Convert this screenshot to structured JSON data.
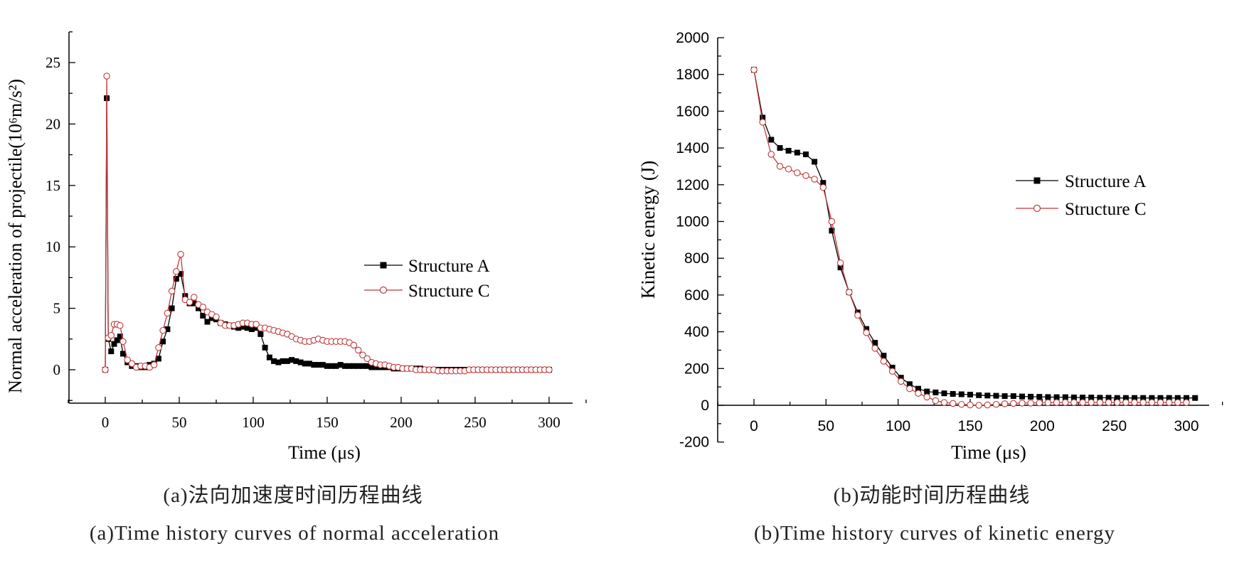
{
  "chart_data": [
    {
      "type": "line",
      "ylabel": "Normal acceleration of projectile(10⁶m/s²)",
      "xlabel": "Time (μs)",
      "xlim": [
        -25,
        325
      ],
      "ylim": [
        -2.5,
        27.5
      ],
      "xticks": [
        0,
        50,
        100,
        150,
        200,
        250,
        300
      ],
      "yticks": [
        0,
        5,
        10,
        15,
        20,
        25
      ],
      "legend": "center-right",
      "caption_cn": "(a)法向加速度时间历程曲线",
      "caption_en": "(a)Time history curves of normal acceleration",
      "series": [
        {
          "name": "Structure A",
          "color": "#000000",
          "marker": "filled-square",
          "x": [
            0,
            1,
            2,
            4,
            6,
            8,
            10,
            12,
            15,
            18,
            21,
            24,
            27,
            30,
            33,
            36,
            39,
            42,
            45,
            48,
            51,
            54,
            57,
            60,
            63,
            66,
            69,
            72,
            75,
            78,
            81,
            84,
            87,
            90,
            93,
            96,
            99,
            102,
            105,
            108,
            111,
            114,
            117,
            120,
            123,
            126,
            129,
            132,
            135,
            138,
            141,
            144,
            147,
            150,
            153,
            156,
            159,
            162,
            165,
            168,
            171,
            174,
            177,
            180,
            183,
            186,
            189,
            192,
            195,
            198,
            201,
            204,
            207,
            210,
            213,
            216,
            219,
            222,
            225,
            228,
            231,
            234,
            237,
            240,
            243,
            246,
            249,
            252,
            255,
            258,
            261,
            264,
            267,
            270,
            273,
            276,
            279,
            282,
            285,
            288,
            291,
            294,
            297,
            300
          ],
          "y": [
            0,
            22.1,
            2.5,
            1.5,
            2.1,
            2.4,
            2.7,
            1.3,
            0.6,
            0.3,
            0.3,
            0.2,
            0.2,
            0.4,
            0.5,
            0.9,
            2.3,
            3.3,
            5.0,
            7.4,
            7.8,
            6.0,
            5.4,
            5.4,
            5.0,
            4.4,
            3.9,
            4.2,
            4.1,
            3.8,
            3.7,
            3.6,
            3.5,
            3.4,
            3.5,
            3.4,
            3.3,
            3.4,
            2.9,
            1.8,
            1.0,
            0.7,
            0.6,
            0.7,
            0.7,
            0.8,
            0.7,
            0.6,
            0.5,
            0.5,
            0.4,
            0.4,
            0.4,
            0.3,
            0.3,
            0.3,
            0.4,
            0.3,
            0.3,
            0.3,
            0.3,
            0.3,
            0.3,
            0.2,
            0.2,
            0.2,
            0.2,
            0.2,
            0.1,
            0.1,
            0.1,
            0.1,
            0.1,
            0.1,
            0.1,
            0.0,
            0.0,
            0.0,
            0.0,
            0.0,
            0.0,
            0.0,
            0.0,
            0.0,
            0.0,
            0.0,
            0.0,
            0.0,
            0.0,
            0.0,
            0.0,
            0.0,
            0.0,
            0.0,
            0.0,
            0.0,
            0.0,
            0.0,
            0.0,
            0.0,
            0.0,
            0.0,
            0.0,
            0.0
          ]
        },
        {
          "name": "Structure C",
          "color": "#c0393b",
          "marker": "open-circle",
          "x": [
            0,
            1,
            2,
            4,
            6,
            8,
            10,
            12,
            15,
            18,
            21,
            24,
            27,
            30,
            33,
            36,
            39,
            42,
            45,
            48,
            51,
            54,
            57,
            60,
            63,
            66,
            69,
            72,
            75,
            78,
            81,
            84,
            87,
            90,
            93,
            96,
            99,
            102,
            105,
            108,
            111,
            114,
            117,
            120,
            123,
            126,
            129,
            132,
            135,
            138,
            141,
            144,
            147,
            150,
            153,
            156,
            159,
            162,
            165,
            168,
            171,
            174,
            177,
            180,
            183,
            186,
            189,
            192,
            195,
            198,
            201,
            204,
            207,
            210,
            213,
            216,
            219,
            222,
            225,
            228,
            231,
            234,
            237,
            240,
            243,
            246,
            249,
            252,
            255,
            258,
            261,
            264,
            267,
            270,
            273,
            276,
            279,
            282,
            285,
            288,
            291,
            294,
            297,
            300
          ],
          "y": [
            0,
            23.9,
            2.6,
            2.8,
            3.7,
            3.7,
            3.6,
            2.3,
            0.8,
            0.5,
            0.2,
            0.3,
            0.3,
            0.2,
            0.4,
            1.8,
            3.2,
            4.6,
            6.4,
            8.0,
            9.4,
            5.7,
            5.5,
            5.9,
            5.3,
            5.1,
            4.7,
            4.5,
            4.3,
            3.8,
            3.6,
            3.6,
            3.6,
            3.7,
            3.8,
            3.8,
            3.7,
            3.7,
            3.4,
            3.4,
            3.3,
            3.2,
            3.1,
            3.0,
            2.9,
            2.7,
            2.5,
            2.4,
            2.3,
            2.3,
            2.4,
            2.5,
            2.4,
            2.3,
            2.3,
            2.3,
            2.3,
            2.3,
            2.2,
            2.0,
            1.6,
            1.2,
            0.9,
            0.6,
            0.5,
            0.4,
            0.4,
            0.3,
            0.2,
            0.2,
            0.1,
            0.1,
            0.1,
            0.0,
            0.0,
            0.0,
            0.0,
            0.0,
            -0.1,
            -0.1,
            -0.1,
            -0.1,
            -0.1,
            -0.1,
            -0.1,
            0.0,
            0.0,
            0.0,
            0.0,
            0.0,
            0.0,
            0.0,
            0.0,
            0.0,
            0.0,
            0.0,
            0.0,
            0.0,
            0.0,
            0.0,
            0.0,
            0.0,
            0.0,
            0.0
          ]
        }
      ]
    },
    {
      "type": "line",
      "ylabel": "Kinetic energy (J)",
      "xlabel": "Time (μs)",
      "xlim": [
        -25,
        325
      ],
      "ylim": [
        -200,
        2000
      ],
      "xticks": [
        0,
        50,
        100,
        150,
        200,
        250,
        300
      ],
      "yticks": [
        -200,
        0,
        200,
        400,
        600,
        800,
        1000,
        1200,
        1400,
        1600,
        1800,
        2000
      ],
      "legend": "top-right",
      "caption_cn": "(b)动能时间历程曲线",
      "caption_en": "(b)Time history curves of kinetic energy",
      "series": [
        {
          "name": "Structure A",
          "color": "#000000",
          "marker": "filled-square",
          "x": [
            0,
            6,
            12,
            18,
            24,
            30,
            36,
            42,
            48,
            54,
            60,
            66,
            72,
            78,
            84,
            90,
            96,
            102,
            108,
            114,
            120,
            126,
            132,
            138,
            144,
            150,
            156,
            162,
            168,
            174,
            180,
            186,
            192,
            198,
            204,
            210,
            216,
            222,
            228,
            234,
            240,
            246,
            252,
            258,
            264,
            270,
            276,
            282,
            288,
            294,
            300,
            306
          ],
          "y": [
            1825,
            1565,
            1445,
            1400,
            1385,
            1375,
            1365,
            1325,
            1210,
            950,
            750,
            615,
            505,
            415,
            340,
            270,
            205,
            150,
            115,
            90,
            75,
            70,
            65,
            62,
            60,
            58,
            55,
            53,
            52,
            50,
            50,
            48,
            47,
            46,
            45,
            44,
            44,
            43,
            42,
            42,
            41,
            41,
            40,
            40,
            40,
            40,
            40,
            40,
            40,
            40,
            40,
            40
          ]
        },
        {
          "name": "Structure C",
          "color": "#c0393b",
          "marker": "open-circle",
          "x": [
            0,
            6,
            12,
            18,
            24,
            30,
            36,
            42,
            48,
            54,
            60,
            66,
            72,
            78,
            84,
            90,
            96,
            102,
            108,
            114,
            120,
            126,
            132,
            138,
            144,
            150,
            156,
            162,
            168,
            174,
            180,
            186,
            192,
            198,
            204,
            210,
            216,
            222,
            228,
            234,
            240,
            246,
            252,
            258,
            264,
            270,
            276,
            282,
            288,
            294,
            300
          ],
          "y": [
            1825,
            1540,
            1365,
            1300,
            1285,
            1265,
            1250,
            1230,
            1185,
            1000,
            775,
            615,
            490,
            395,
            310,
            240,
            185,
            130,
            90,
            65,
            45,
            25,
            15,
            10,
            5,
            2,
            0,
            2,
            5,
            8,
            10,
            12,
            12,
            13,
            14,
            15,
            15,
            15,
            15,
            15,
            15,
            15,
            15,
            15,
            15,
            15,
            15,
            15,
            15,
            15,
            15
          ]
        }
      ]
    }
  ]
}
